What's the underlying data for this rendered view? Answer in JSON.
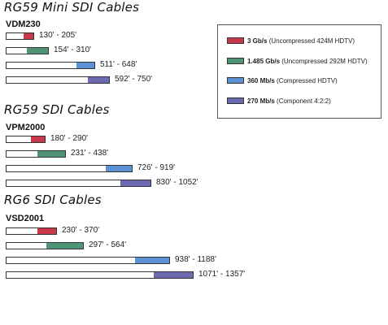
{
  "legend": {
    "items": [
      {
        "rate": "3 Gb/s",
        "desc": "(Uncompressed 424M HDTV)",
        "color": "#c8374a"
      },
      {
        "rate": "1.485 Gb/s",
        "desc": "(Uncompressed 292M HDTV)",
        "color": "#4e9475"
      },
      {
        "rate": "360 Mb/s",
        "desc": "(Compressed HDTV)",
        "color": "#5d91d6"
      },
      {
        "rate": "270 Mb/s",
        "desc": "(Component 4:2:2)",
        "color": "#6b69b2"
      }
    ]
  },
  "chart_data": {
    "type": "bar",
    "unit": "ft",
    "groups": [
      {
        "title": "RG59 Mini SDI Cables",
        "model": "VDM230",
        "bars": [
          {
            "series": "3 Gb/s",
            "min": 130,
            "max": 205,
            "label": "130' - 205'"
          },
          {
            "series": "1.485 Gb/s",
            "min": 154,
            "max": 310,
            "label": "154' - 310'"
          },
          {
            "series": "360 Mb/s",
            "min": 511,
            "max": 648,
            "label": "511' - 648'"
          },
          {
            "series": "270 Mb/s",
            "min": 592,
            "max": 750,
            "label": "592' - 750'"
          }
        ]
      },
      {
        "title": "RG59 SDI Cables",
        "model": "VPM2000",
        "bars": [
          {
            "series": "3 Gb/s",
            "min": 180,
            "max": 290,
            "label": "180' - 290'"
          },
          {
            "series": "1.485 Gb/s",
            "min": 231,
            "max": 438,
            "label": "231' - 438'"
          },
          {
            "series": "360 Mb/s",
            "min": 726,
            "max": 919,
            "label": "726' - 919'"
          },
          {
            "series": "270 Mb/s",
            "min": 830,
            "max": 1052,
            "label": "830' - 1052'"
          }
        ]
      },
      {
        "title": "RG6 SDI Cables",
        "model": "VSD2001",
        "bars": [
          {
            "series": "3 Gb/s",
            "min": 230,
            "max": 370,
            "label": "230' - 370'"
          },
          {
            "series": "1.485 Gb/s",
            "min": 297,
            "max": 564,
            "label": "297' - 564'"
          },
          {
            "series": "360 Mb/s",
            "min": 938,
            "max": 1188,
            "label": "938' - 1188'"
          },
          {
            "series": "270 Mb/s",
            "min": 1071,
            "max": 1357,
            "label": "1071' - 1357'"
          }
        ]
      }
    ]
  }
}
